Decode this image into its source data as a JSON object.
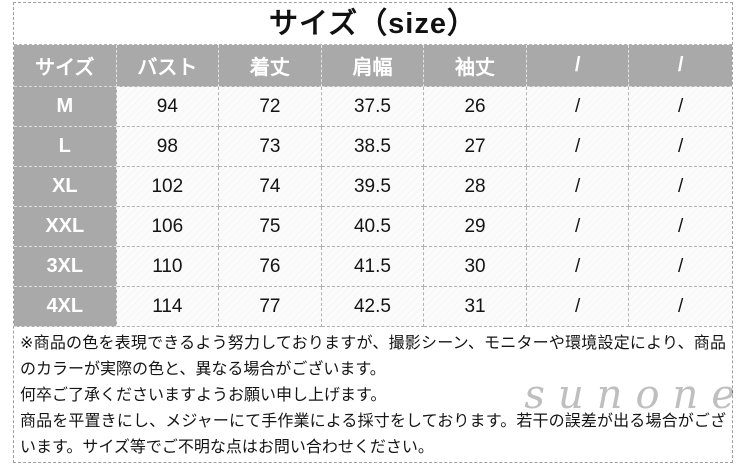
{
  "title": "サイズ（size）",
  "table": {
    "headers": [
      "サイズ",
      "バスト",
      "着丈",
      "肩幅",
      "袖丈",
      "/",
      "/"
    ],
    "rows": [
      {
        "size": "M",
        "values": [
          "94",
          "72",
          "37.5",
          "26",
          "/",
          "/"
        ]
      },
      {
        "size": "L",
        "values": [
          "98",
          "73",
          "38.5",
          "27",
          "/",
          "/"
        ]
      },
      {
        "size": "XL",
        "values": [
          "102",
          "74",
          "39.5",
          "28",
          "/",
          "/"
        ]
      },
      {
        "size": "XXL",
        "values": [
          "106",
          "75",
          "40.5",
          "29",
          "/",
          "/"
        ]
      },
      {
        "size": "3XL",
        "values": [
          "110",
          "76",
          "41.5",
          "30",
          "/",
          "/"
        ]
      },
      {
        "size": "4XL",
        "values": [
          "114",
          "77",
          "42.5",
          "31",
          "/",
          "/"
        ]
      }
    ]
  },
  "notes": [
    "※商品の色を表現できるよう努力しておりますが、撮影シーン、モニターや環境設定により、商品のカラーが実際の色と、異なる場合がございます。",
    "何卒ご了承くださいますようお願い申し上げます。",
    "商品を平置きにし、メジャーにて手作業による採寸をしております。若干の誤差が出る場合がございます。サイズ等でご不明な点はお問い合わせください。"
  ],
  "watermark": "sunone",
  "colors": {
    "header_bg": "#a9a9a9",
    "header_text": "#ffffff",
    "cell_bg": "#fafafa",
    "cell_text": "#141414",
    "border": "#9f9f9f",
    "watermark": "#bfbfbf"
  }
}
